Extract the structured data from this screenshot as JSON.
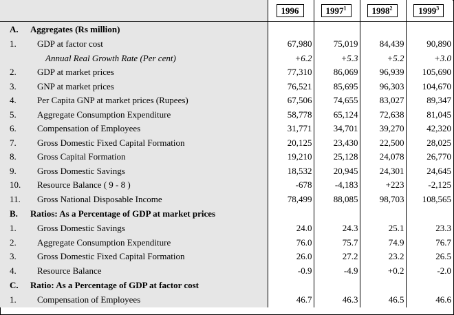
{
  "header": {
    "years": [
      {
        "label": "1996",
        "sup": ""
      },
      {
        "label": "1997",
        "sup": "1"
      },
      {
        "label": "1998",
        "sup": "2"
      },
      {
        "label": "1999",
        "sup": "3"
      }
    ]
  },
  "sections": [
    {
      "id": "A.",
      "title": "Aggregates (Rs million)",
      "rows": [
        {
          "num": "1.",
          "label": "GDP at factor cost",
          "values": [
            "67,980",
            "75,019",
            "84,439",
            "90,890"
          ]
        },
        {
          "num": "",
          "label": "Annual Real Growth Rate (Per cent)",
          "values": [
            "+6.2",
            "+5.3",
            "+5.2",
            "+3.0"
          ],
          "italic": true
        },
        {
          "num": "2.",
          "label": "GDP at market prices",
          "values": [
            "77,310",
            "86,069",
            "96,939",
            "105,690"
          ]
        },
        {
          "num": "3.",
          "label": "GNP at market prices",
          "values": [
            "76,521",
            "85,695",
            "96,303",
            "104,670"
          ]
        },
        {
          "num": "4.",
          "label": "Per Capita GNP at market prices (Rupees)",
          "values": [
            "67,506",
            "74,655",
            "83,027",
            "89,347"
          ]
        },
        {
          "num": "5.",
          "label": "Aggregate Consumption Expenditure",
          "values": [
            "58,778",
            "65,124",
            "72,638",
            "81,045"
          ]
        },
        {
          "num": "6.",
          "label": "Compensation of Employees",
          "values": [
            "31,771",
            "34,701",
            "39,270",
            "42,320"
          ]
        },
        {
          "num": "7.",
          "label": "Gross Domestic Fixed Capital Formation",
          "values": [
            "20,125",
            "23,430",
            "22,500",
            "28,025"
          ]
        },
        {
          "num": "8.",
          "label": "Gross Capital Formation",
          "values": [
            "19,210",
            "25,128",
            "24,078",
            "26,770"
          ]
        },
        {
          "num": "9.",
          "label": "Gross Domestic Savings",
          "values": [
            "18,532",
            "20,945",
            "24,301",
            "24,645"
          ]
        },
        {
          "num": "10.",
          "label": "Resource Balance ( 9 - 8 )",
          "values": [
            "-678",
            "-4,183",
            "+223",
            "-2,125"
          ]
        },
        {
          "num": "11.",
          "label": "Gross National Disposable Income",
          "values": [
            "78,499",
            "88,085",
            "98,703",
            "108,565"
          ]
        }
      ]
    },
    {
      "id": "B.",
      "title": "Ratios: As a Percentage of GDP at market prices",
      "rows": [
        {
          "num": "1.",
          "label": "Gross Domestic Savings",
          "values": [
            "24.0",
            "24.3",
            "25.1",
            "23.3"
          ]
        },
        {
          "num": "2.",
          "label": "Aggregate Consumption Expenditure",
          "values": [
            "76.0",
            "75.7",
            "74.9",
            "76.7"
          ]
        },
        {
          "num": "3.",
          "label": "Gross Domestic Fixed Capital Formation",
          "values": [
            "26.0",
            "27.2",
            "23.2",
            "26.5"
          ]
        },
        {
          "num": "4.",
          "label": "Resource Balance",
          "values": [
            "-0.9",
            "-4.9",
            "+0.2",
            "-2.0"
          ]
        }
      ]
    },
    {
      "id": "C.",
      "title": "Ratio: As a Percentage of GDP at factor cost",
      "rows": [
        {
          "num": "1.",
          "label": "Compensation of Employees",
          "values": [
            "46.7",
            "46.3",
            "46.5",
            "46.6"
          ]
        }
      ]
    }
  ]
}
